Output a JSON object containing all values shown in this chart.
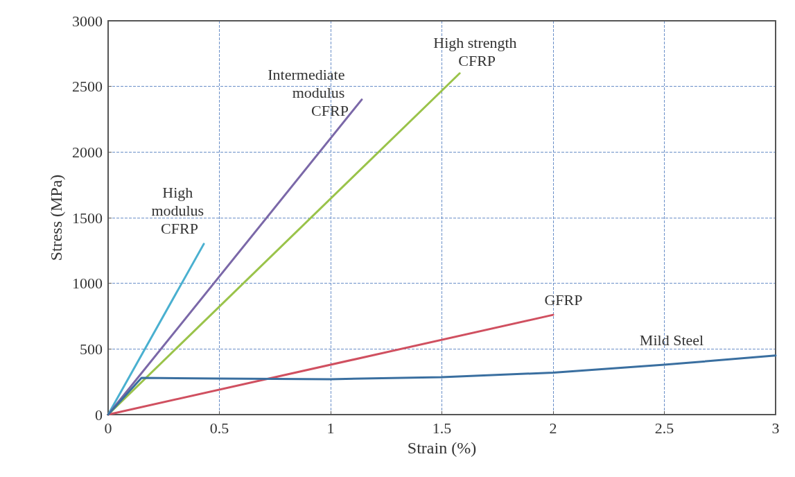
{
  "chart_data": {
    "type": "line",
    "xlabel": "Strain (%)",
    "ylabel": "Stress (MPa)",
    "xlim": [
      0,
      3
    ],
    "ylim": [
      0,
      3000
    ],
    "xticks": [
      0,
      0.5,
      1,
      1.5,
      2,
      2.5,
      3
    ],
    "yticks": [
      0,
      500,
      1000,
      1500,
      2000,
      2500,
      3000
    ],
    "grid": true,
    "legend": false,
    "marker": "none",
    "line_style": "solid",
    "series": [
      {
        "name": "High modulus CFRP",
        "color": "#4ab0d0",
        "x": [
          0,
          0.43
        ],
        "values": [
          0,
          1300
        ]
      },
      {
        "name": "Intermediate modulus CFRP",
        "color": "#7b68a8",
        "x": [
          0,
          1.14
        ],
        "values": [
          0,
          2400
        ]
      },
      {
        "name": "High strength CFRP",
        "color": "#9ac34a",
        "x": [
          0,
          1.58
        ],
        "values": [
          0,
          2600
        ]
      },
      {
        "name": "GFRP",
        "color": "#d05060",
        "x": [
          0,
          2
        ],
        "values": [
          0,
          760
        ]
      },
      {
        "name": "Mild Steel",
        "color": "#3a6fa0",
        "x": [
          0,
          0.15,
          0.5,
          1,
          1.5,
          2,
          2.5,
          3
        ],
        "values": [
          0,
          280,
          275,
          270,
          285,
          320,
          380,
          450
        ]
      }
    ]
  }
}
